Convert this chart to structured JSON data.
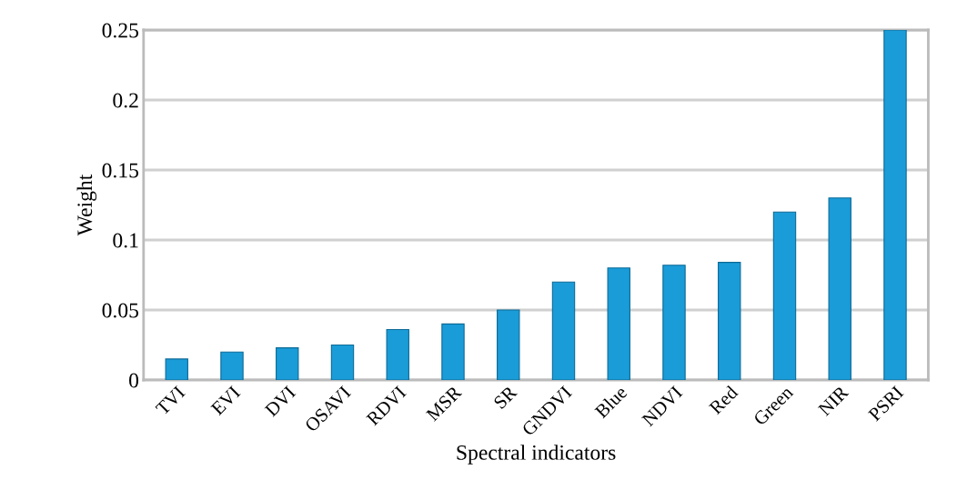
{
  "chart_data": {
    "type": "bar",
    "xlabel": "Spectral indicators",
    "ylabel": "Weight",
    "categories": [
      "TVI",
      "EVI",
      "DVI",
      "OSAVI",
      "RDVI",
      "MSR",
      "SR",
      "GNDVI",
      "Blue",
      "NDVI",
      "Red",
      "Green",
      "NIR",
      "PSRI"
    ],
    "values": [
      0.015,
      0.02,
      0.023,
      0.025,
      0.036,
      0.04,
      0.05,
      0.07,
      0.08,
      0.082,
      0.084,
      0.12,
      0.13,
      0.25
    ],
    "color": "#1a9cd8",
    "ylim": [
      0,
      0.25
    ],
    "yticks": [
      0,
      0.05,
      0.1,
      0.15,
      0.2,
      0.25
    ],
    "grid": "y"
  }
}
